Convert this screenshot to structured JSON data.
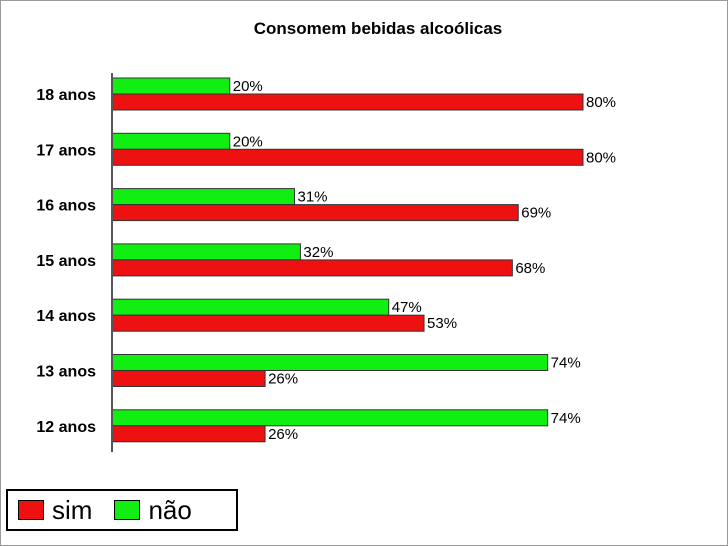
{
  "chart_data": {
    "type": "bar",
    "orientation": "horizontal",
    "title": "Consomem bebidas alcoólicas",
    "categories": [
      "18 anos",
      "17 anos",
      "16 anos",
      "15 anos",
      "14 anos",
      "13 anos",
      "12 anos"
    ],
    "series": [
      {
        "name": "não",
        "color": "#11ee11",
        "values": [
          20,
          20,
          31,
          32,
          47,
          74,
          74
        ],
        "labels": [
          "20%",
          "20%",
          "31%",
          "32%",
          "47%",
          "74%",
          "74%"
        ]
      },
      {
        "name": "sim",
        "color": "#ee1111",
        "values": [
          80,
          80,
          69,
          68,
          53,
          26,
          26
        ],
        "labels": [
          "80%",
          "80%",
          "69%",
          "68%",
          "53%",
          "26%",
          "26%"
        ]
      }
    ],
    "xlim": [
      0,
      100
    ],
    "grid": false,
    "legend": "bottom-left"
  }
}
